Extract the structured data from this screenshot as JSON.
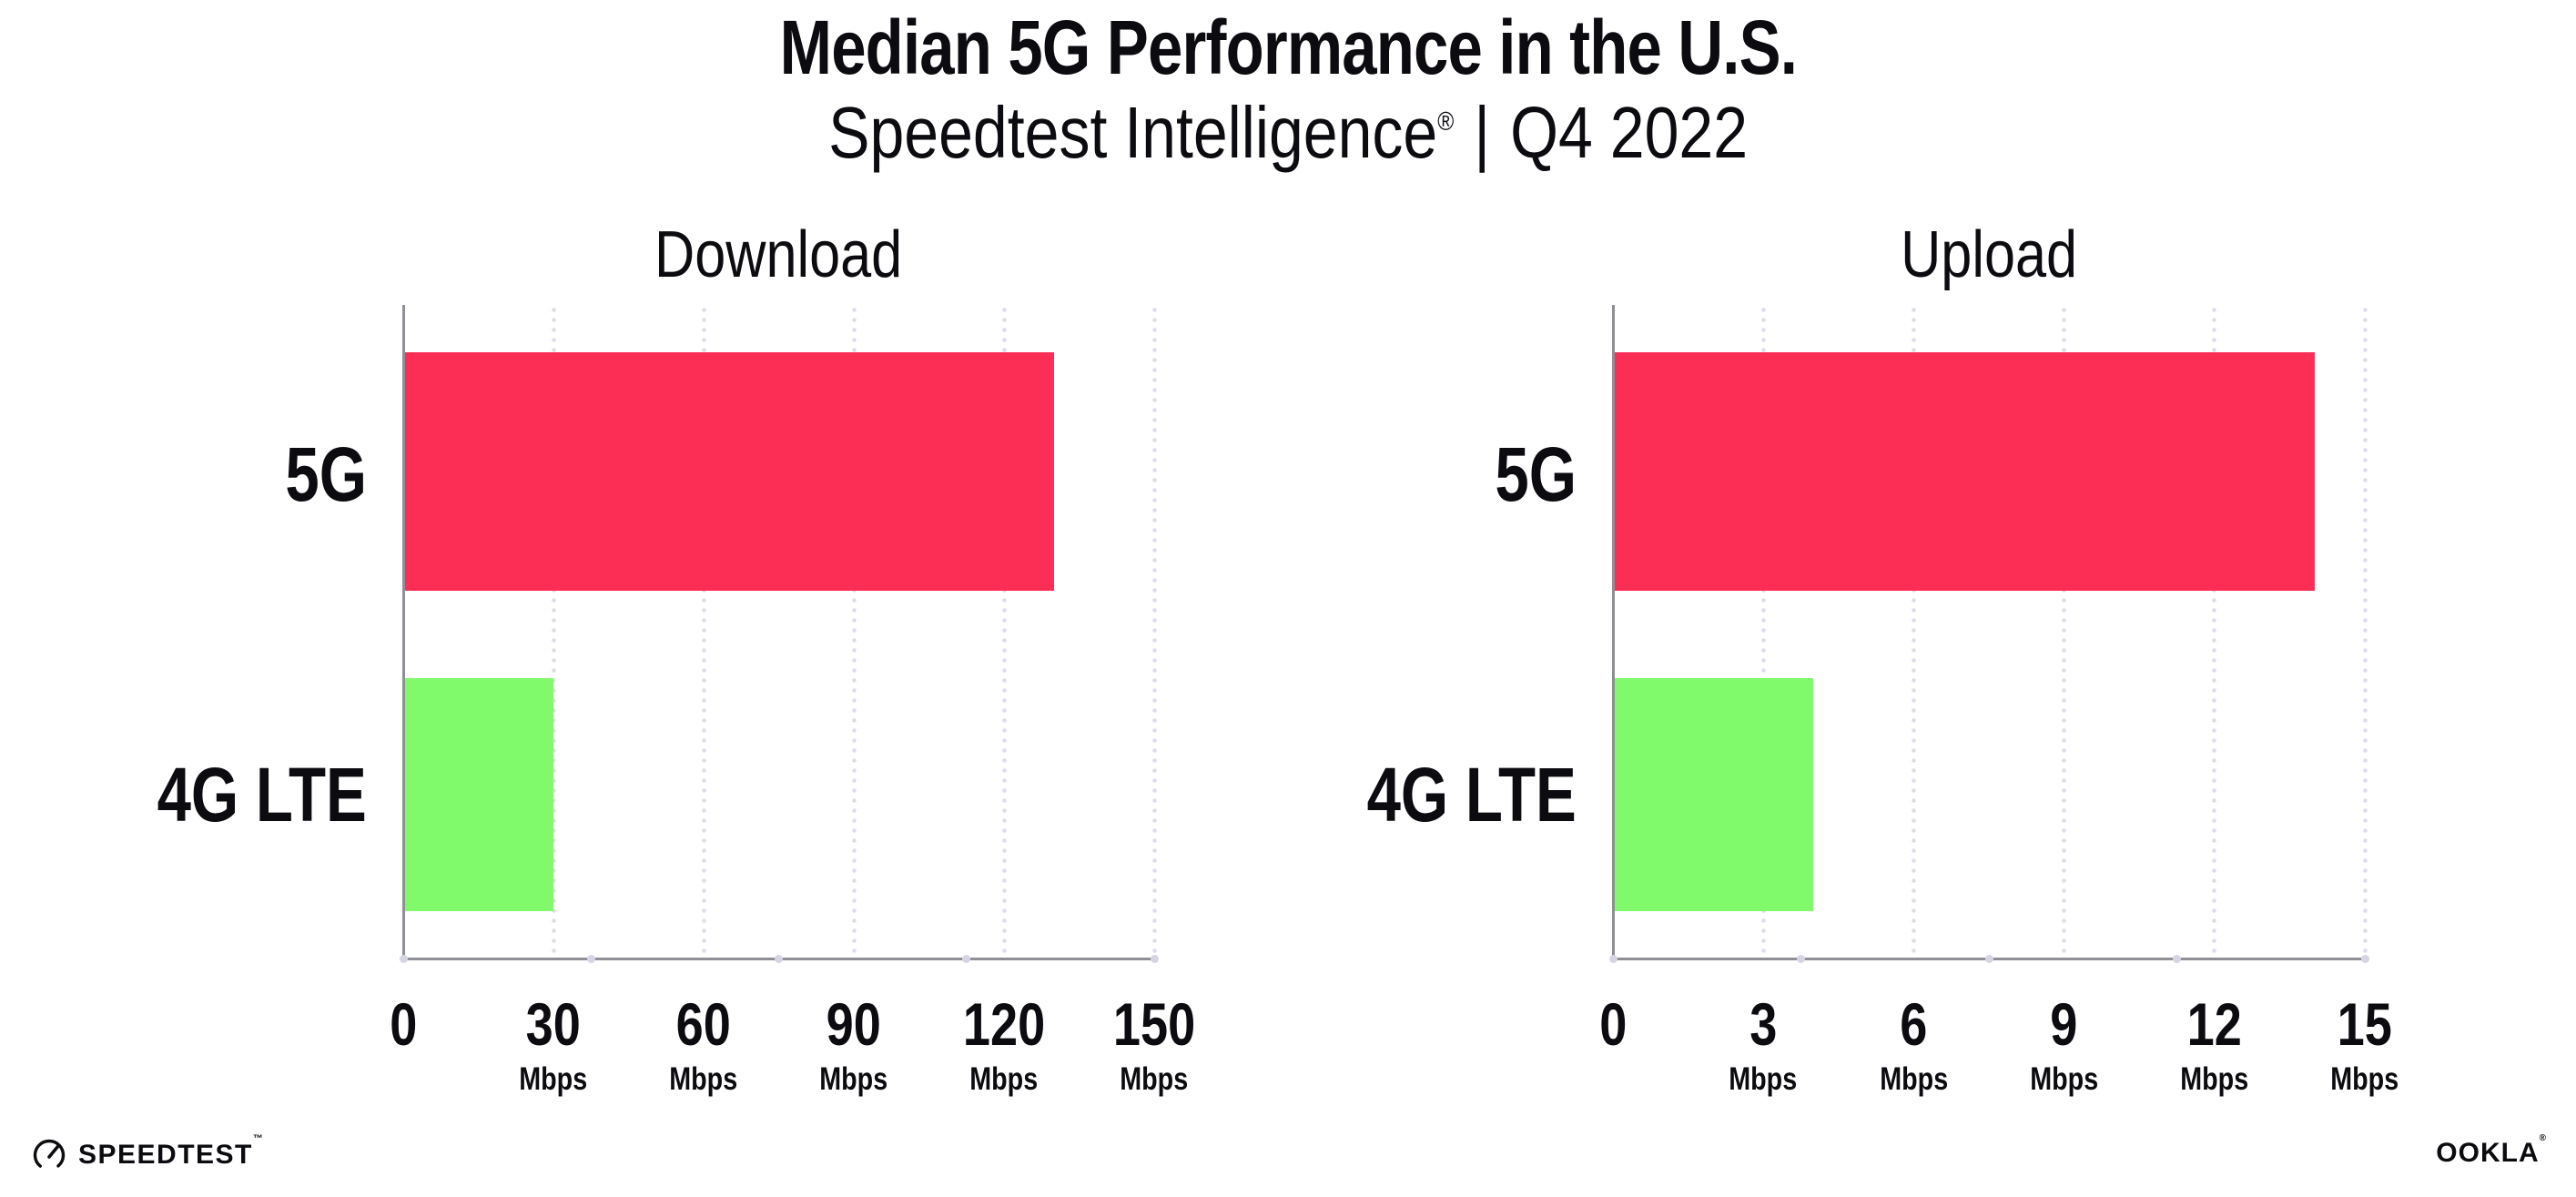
{
  "header": {
    "title": "Median 5G Performance in the U.S.",
    "subtitle": {
      "brand": "Speedtest Intelligence",
      "registered_mark": "®",
      "separator": "|",
      "period": "Q4 2022"
    }
  },
  "chart_data": [
    {
      "type": "bar",
      "orientation": "horizontal",
      "title": "Download",
      "categories": [
        "5G",
        "4G LTE"
      ],
      "values": [
        130,
        30
      ],
      "xlim": [
        0,
        150
      ],
      "xticks": [
        0,
        30,
        60,
        90,
        120,
        150
      ],
      "tick_unit": "Mbps",
      "bar_colors": [
        "#FC2E56",
        "#80FA6B"
      ],
      "grid": "dotted-vertical",
      "legend": "none"
    },
    {
      "type": "bar",
      "orientation": "horizontal",
      "title": "Upload",
      "categories": [
        "5G",
        "4G LTE"
      ],
      "values": [
        14,
        4
      ],
      "xlim": [
        0,
        15
      ],
      "xticks": [
        0,
        3,
        6,
        9,
        12,
        15
      ],
      "tick_unit": "Mbps",
      "bar_colors": [
        "#FC2E56",
        "#80FA6B"
      ],
      "grid": "dotted-vertical",
      "legend": "none"
    }
  ],
  "footer": {
    "speedtest": {
      "label": "SPEEDTEST",
      "mark": "™"
    },
    "ookla": {
      "label": "OOKLA",
      "mark": "®"
    }
  }
}
